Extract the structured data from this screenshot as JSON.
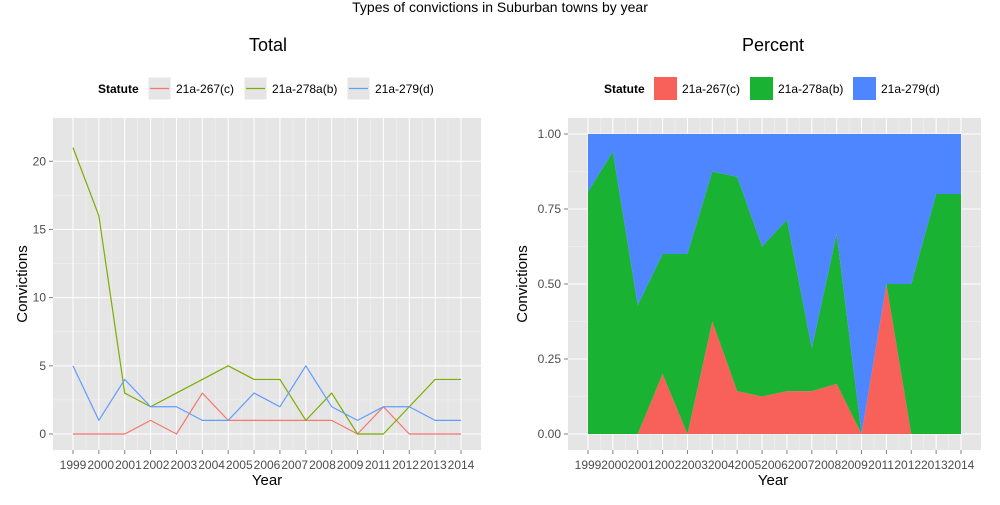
{
  "suptitle": "Types of convictions in Suburban towns by year",
  "colors": {
    "red": "#F8766D",
    "green": "#7CAE00",
    "blue": "#619CFF",
    "area_red": "#F8615A",
    "area_green": "#19B232",
    "area_blue": "#4E86FF",
    "panel_bg": "#E5E5E5",
    "grid_major": "#FFFFFF",
    "grid_minor": "#F2F2F2"
  },
  "chart_data": [
    {
      "type": "line",
      "title": "Total",
      "xlabel": "Year",
      "ylabel": "Convictions",
      "legend_title": "Statute",
      "legend_position": "top",
      "x": [
        1999,
        2000,
        2001,
        2002,
        2003,
        2004,
        2005,
        2006,
        2007,
        2008,
        2009,
        2010,
        2011,
        2012,
        2013,
        2014
      ],
      "x_tick_labels": [
        "1999",
        "2000",
        "2001",
        "2002",
        "2003",
        "2004",
        "2005",
        "2006",
        "2007",
        "2008",
        "2009",
        "2011",
        "2012",
        "2013",
        "2014"
      ],
      "y_ticks": [
        "0",
        "5",
        "10",
        "15",
        "20"
      ],
      "ylim": [
        0,
        22
      ],
      "series": [
        {
          "name": "21a-267(c)",
          "values": [
            0,
            0,
            0,
            1,
            0,
            3,
            1,
            1,
            1,
            1,
            1,
            0,
            2,
            0,
            0,
            0
          ]
        },
        {
          "name": "21a-278a(b)",
          "values": [
            21,
            16,
            3,
            2,
            3,
            4,
            5,
            4,
            4,
            1,
            3,
            0,
            0,
            2,
            4,
            4
          ]
        },
        {
          "name": "21a-279(d)",
          "values": [
            5,
            1,
            4,
            2,
            2,
            1,
            1,
            3,
            2,
            5,
            2,
            1,
            2,
            2,
            1,
            1
          ]
        }
      ]
    },
    {
      "type": "area",
      "stacked": true,
      "title": "Percent",
      "xlabel": "Year",
      "ylabel": "Convictions",
      "legend_title": "Statute",
      "legend_position": "top",
      "x": [
        1999,
        2000,
        2001,
        2002,
        2003,
        2004,
        2005,
        2006,
        2007,
        2008,
        2009,
        2010,
        2011,
        2012,
        2013,
        2014
      ],
      "x_tick_labels": [
        "1999",
        "2000",
        "2001",
        "2002",
        "2003",
        "2004",
        "2005",
        "2006",
        "2007",
        "2008",
        "2009",
        "2011",
        "2012",
        "2013",
        "2014"
      ],
      "y_ticks": [
        "0.00",
        "0.25",
        "0.50",
        "0.75",
        "1.00"
      ],
      "ylim": [
        0,
        1
      ],
      "series": [
        {
          "name": "21a-267(c)",
          "values": [
            0,
            0,
            0,
            0.2,
            0,
            0.375,
            0.143,
            0.125,
            0.143,
            0.143,
            0.167,
            0,
            0.5,
            0,
            0,
            0
          ]
        },
        {
          "name": "21a-278a(b)",
          "values": [
            0.808,
            0.941,
            0.429,
            0.4,
            0.6,
            0.5,
            0.714,
            0.5,
            0.571,
            0.143,
            0.5,
            0,
            0,
            0.5,
            0.8,
            0.8
          ]
        },
        {
          "name": "21a-279(d)",
          "values": [
            0.192,
            0.059,
            0.571,
            0.4,
            0.4,
            0.125,
            0.143,
            0.375,
            0.286,
            0.714,
            0.333,
            1,
            0.5,
            0.5,
            0.2,
            0.2
          ]
        }
      ]
    }
  ]
}
